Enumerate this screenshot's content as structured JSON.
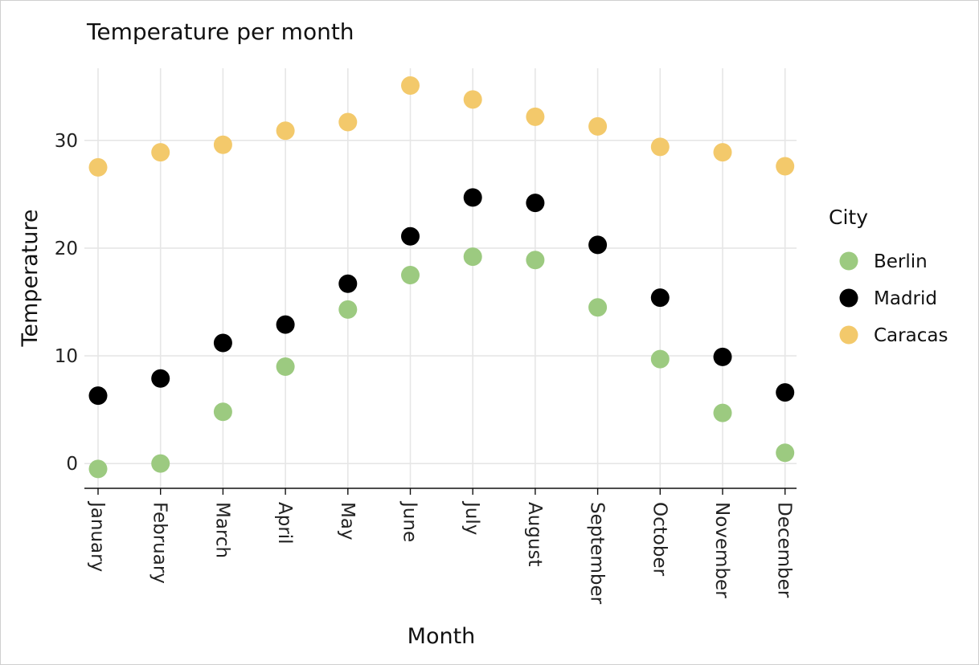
{
  "chart_data": {
    "type": "scatter",
    "title": "Temperature per month",
    "xlabel": "Month",
    "ylabel": "Temperature",
    "categories": [
      "January",
      "February",
      "March",
      "April",
      "May",
      "June",
      "July",
      "August",
      "September",
      "October",
      "November",
      "December"
    ],
    "ylim": [
      -2.3,
      36.7
    ],
    "yticks": [
      0,
      10,
      20,
      30
    ],
    "grid": true,
    "legend_title": "City",
    "legend_position": "right",
    "series": [
      {
        "name": "Berlin",
        "color": "#9cca80",
        "values": [
          -0.5,
          0.0,
          4.8,
          9.0,
          14.3,
          17.5,
          19.2,
          18.9,
          14.5,
          9.7,
          4.7,
          1.0
        ]
      },
      {
        "name": "Madrid",
        "color": "#000000",
        "values": [
          6.3,
          7.9,
          11.2,
          12.9,
          16.7,
          21.1,
          24.7,
          24.2,
          20.3,
          15.4,
          9.9,
          6.6
        ]
      },
      {
        "name": "Caracas",
        "color": "#f3c96b",
        "values": [
          27.5,
          28.9,
          29.6,
          30.9,
          31.7,
          35.1,
          33.8,
          32.2,
          31.3,
          29.4,
          28.9,
          27.6
        ]
      }
    ]
  }
}
